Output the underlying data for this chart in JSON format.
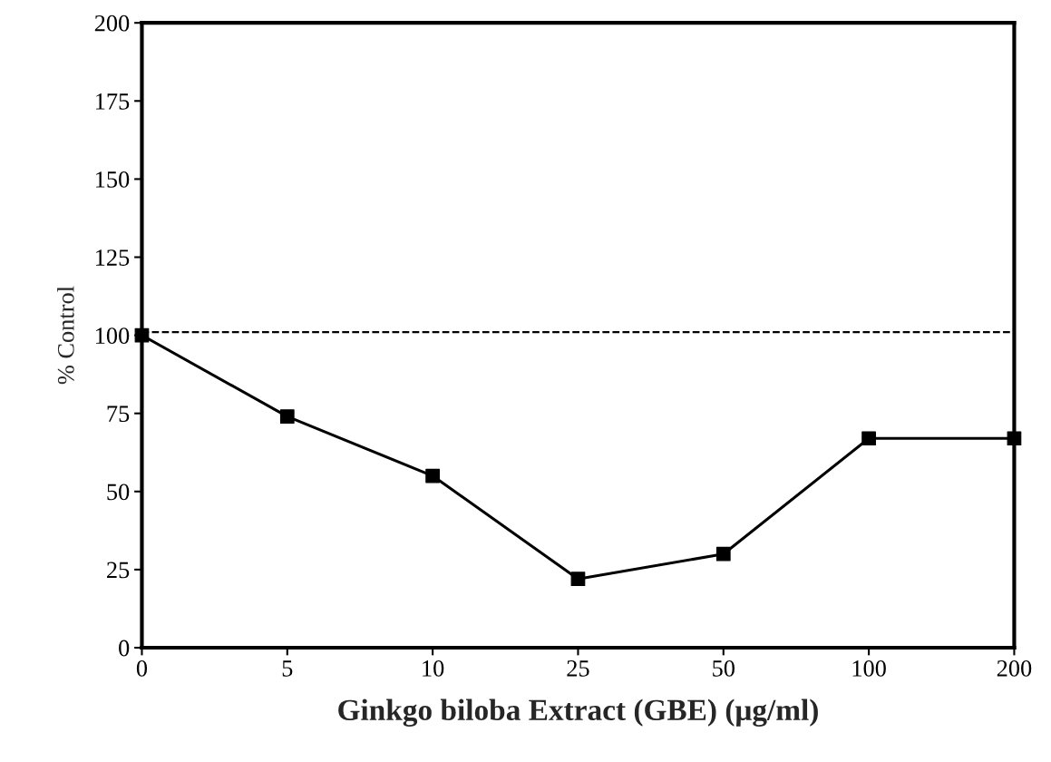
{
  "chart_data": {
    "type": "line",
    "xlabel": "Ginkgo biloba Extract (GBE) (μg/ml)",
    "ylabel": "% Control",
    "categories": [
      "0",
      "5",
      "10",
      "25",
      "50",
      "100",
      "200"
    ],
    "series": [
      {
        "color": "#000000",
        "values": [
          100,
          74,
          55,
          22,
          30,
          67,
          67
        ]
      }
    ],
    "ylim": [
      0,
      200
    ],
    "yticks": [
      0,
      25,
      50,
      75,
      100,
      125,
      150,
      175,
      200
    ],
    "ref_lines": [
      {
        "axis": "y",
        "value": 101,
        "color": "#000000",
        "line_style": "dashed"
      }
    ],
    "marker": "square",
    "line_style": "solid",
    "grid": false,
    "legend": false
  }
}
